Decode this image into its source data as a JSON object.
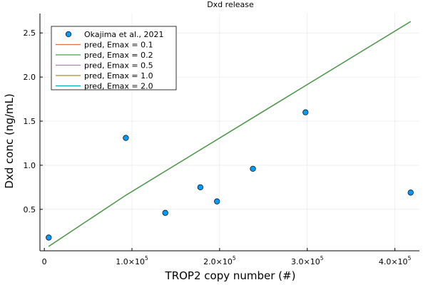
{
  "chart_data": {
    "type": "line+scatter",
    "title": "Dxd release",
    "xlabel": "TROP2 copy number (#)",
    "ylabel": "Dxd conc (ng/mL)",
    "xlim": [
      -5000,
      428000
    ],
    "ylim": [
      0.03,
      2.72
    ],
    "x_ticks": [
      {
        "value": 0,
        "mantissa": "0",
        "exp": ""
      },
      {
        "value": 100000,
        "mantissa": "1.0×10",
        "exp": "5"
      },
      {
        "value": 200000,
        "mantissa": "2.0×10",
        "exp": "5"
      },
      {
        "value": 300000,
        "mantissa": "3.0×10",
        "exp": "5"
      },
      {
        "value": 400000,
        "mantissa": "4.0×10",
        "exp": "5"
      }
    ],
    "y_ticks": [
      {
        "value": 0.5,
        "label": "0.5"
      },
      {
        "value": 1.0,
        "label": "1.0"
      },
      {
        "value": 1.5,
        "label": "1.5"
      },
      {
        "value": 2.0,
        "label": "2.0"
      },
      {
        "value": 2.5,
        "label": "2.5"
      }
    ],
    "grid": true,
    "legend_position": "top-left",
    "scatter": {
      "name": "Okajima et al., 2021",
      "color": "#009AFA",
      "points": [
        {
          "x": 5000,
          "y": 0.18
        },
        {
          "x": 93000,
          "y": 1.31
        },
        {
          "x": 138000,
          "y": 0.46
        },
        {
          "x": 178000,
          "y": 0.75
        },
        {
          "x": 197000,
          "y": 0.59
        },
        {
          "x": 238000,
          "y": 0.96
        },
        {
          "x": 298000,
          "y": 1.6
        },
        {
          "x": 418000,
          "y": 0.69
        }
      ]
    },
    "series": [
      {
        "name": "pred, Emax = 0.1",
        "color": "#E36F47",
        "x": [
          5000,
          93000,
          418000
        ],
        "y": [
          0.08,
          0.66,
          2.63
        ]
      },
      {
        "name": "pred, Emax = 0.2",
        "color": "#3EA44E",
        "x": [
          5000,
          93000,
          418000
        ],
        "y": [
          0.08,
          0.66,
          2.63
        ]
      },
      {
        "name": "pred, Emax = 0.5",
        "color": "#C271D2",
        "x": [
          5000,
          93000,
          418000
        ],
        "y": [
          0.08,
          0.66,
          2.63
        ]
      },
      {
        "name": "pred, Emax = 1.0",
        "color": "#AC8D18",
        "x": [
          5000,
          93000,
          418000
        ],
        "y": [
          0.08,
          0.66,
          2.63
        ]
      },
      {
        "name": "pred, Emax = 2.0",
        "color": "#00A9AD",
        "x": [
          5000,
          93000,
          418000
        ],
        "y": [
          0.08,
          0.66,
          2.63
        ]
      }
    ],
    "draw_order": [
      4,
      3,
      2,
      0,
      1
    ]
  }
}
